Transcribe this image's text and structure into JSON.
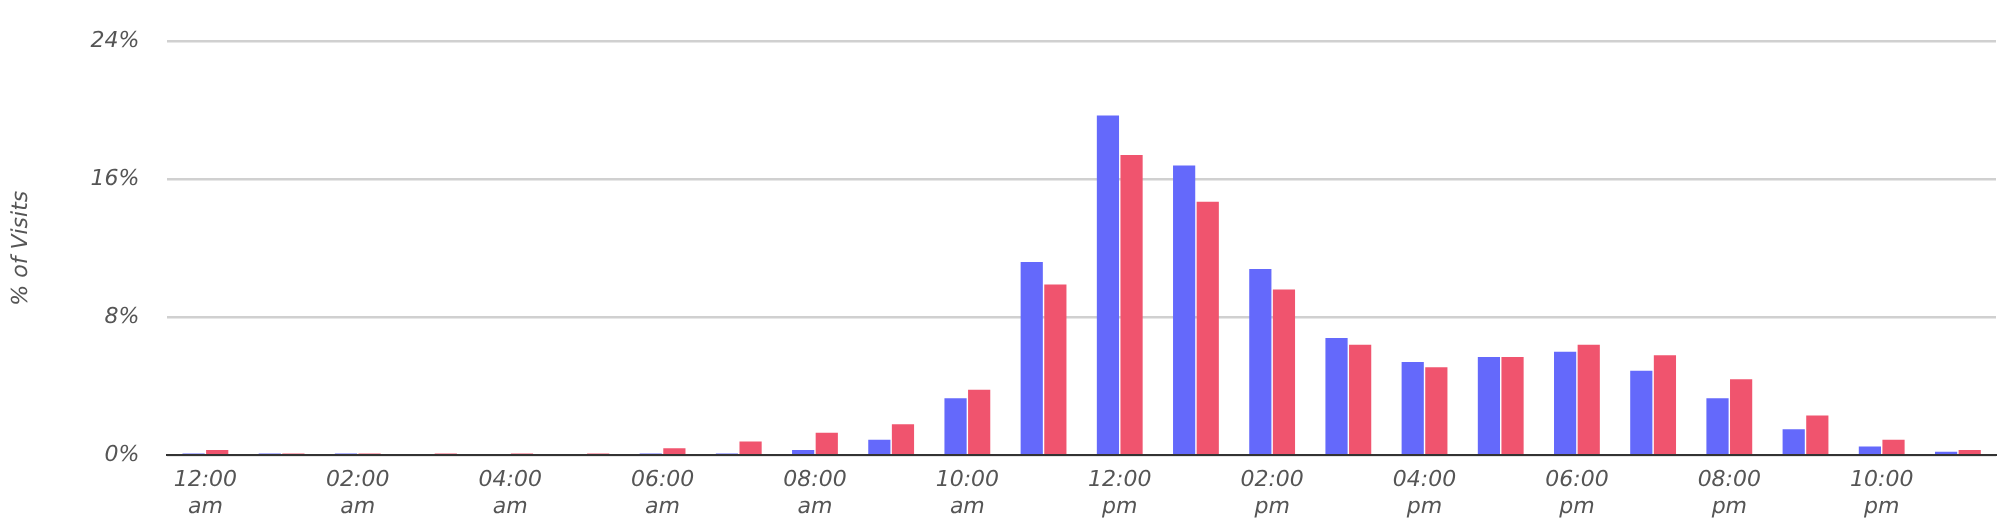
{
  "chart_data": {
    "type": "bar",
    "ylabel": "% of Visits",
    "categories": [
      "12:00 am",
      null,
      "02:00 am",
      null,
      "04:00 am",
      null,
      "06:00 am",
      null,
      "08:00 am",
      null,
      "10:00 am",
      null,
      "12:00 pm",
      null,
      "02:00 pm",
      null,
      "04:00 pm",
      null,
      "06:00 pm",
      null,
      "08:00 pm",
      null,
      "10:00 pm",
      null
    ],
    "series": [
      {
        "color": "#6469fb",
        "values": [
          0.1,
          0.1,
          0.1,
          0,
          0,
          0,
          0.1,
          0.1,
          0.3,
          0.9,
          3.3,
          11.2,
          19.7,
          16.8,
          10.8,
          6.8,
          5.4,
          5.7,
          6.0,
          4.9,
          3.3,
          1.5,
          0.5,
          0.2
        ]
      },
      {
        "color": "#f0546e",
        "values": [
          0.3,
          0.1,
          0.1,
          0.1,
          0.1,
          0.1,
          0.4,
          0.8,
          1.3,
          1.8,
          3.8,
          9.9,
          17.4,
          14.7,
          9.6,
          6.4,
          5.1,
          5.7,
          6.4,
          5.8,
          4.4,
          2.3,
          0.9,
          0.3
        ]
      }
    ],
    "ylim": [
      0,
      24
    ],
    "yticks": [
      {
        "value": 0,
        "label": "0%"
      },
      {
        "value": 8,
        "label": "8%"
      },
      {
        "value": 16,
        "label": "16%"
      },
      {
        "value": 24,
        "label": "24%"
      }
    ],
    "grid": "y",
    "legend": false
  }
}
